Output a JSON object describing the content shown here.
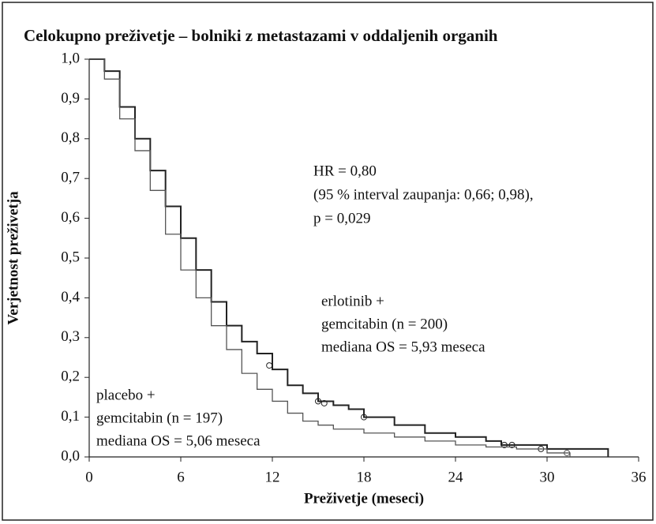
{
  "chart_data": {
    "type": "step",
    "title": "Celokupno preživetje – bolniki z metastazami v oddaljenih organih",
    "xlabel": "Preživetje (meseci)",
    "ylabel": "Verjetnost preživetja",
    "xlim": [
      0,
      36
    ],
    "xticks": [
      0,
      6,
      12,
      18,
      24,
      30,
      36
    ],
    "ylim": [
      0,
      1
    ],
    "yticks": [
      {
        "value": 0,
        "label": "0,0"
      },
      {
        "value": 0.1,
        "label": "0,1"
      },
      {
        "value": 0.2,
        "label": "0,2"
      },
      {
        "value": 0.3,
        "label": "0,3"
      },
      {
        "value": 0.4,
        "label": "0,4"
      },
      {
        "value": 0.5,
        "label": "0,5"
      },
      {
        "value": 0.6,
        "label": "0,6"
      },
      {
        "value": 0.7,
        "label": "0,7"
      },
      {
        "value": 0.8,
        "label": "0,8"
      },
      {
        "value": 0.9,
        "label": "0,9"
      },
      {
        "value": 1,
        "label": "1,0"
      }
    ],
    "series": [
      {
        "name": "erlotinib",
        "color": "#222222",
        "x": [
          0,
          1,
          2,
          3,
          4,
          5,
          6,
          7,
          8,
          9,
          10,
          11,
          12,
          13,
          14,
          15,
          16,
          17,
          18,
          20,
          22,
          24,
          26,
          27,
          30,
          34
        ],
        "values": [
          1.0,
          0.97,
          0.88,
          0.8,
          0.72,
          0.63,
          0.55,
          0.47,
          0.39,
          0.33,
          0.29,
          0.26,
          0.22,
          0.18,
          0.16,
          0.14,
          0.13,
          0.12,
          0.1,
          0.08,
          0.06,
          0.05,
          0.04,
          0.03,
          0.02,
          0.0
        ],
        "censored_x": [
          11.8,
          15,
          15.4,
          18,
          27.2,
          27.7,
          29.6
        ],
        "censored_values": [
          0.23,
          0.14,
          0.135,
          0.1,
          0.03,
          0.03,
          0.02
        ]
      },
      {
        "name": "placebo",
        "color": "#555555",
        "x": [
          0,
          1,
          2,
          3,
          4,
          5,
          6,
          7,
          8,
          9,
          10,
          11,
          12,
          13,
          14,
          15,
          16,
          18,
          20,
          22,
          24,
          26,
          28,
          30,
          31.5
        ],
        "values": [
          1.0,
          0.95,
          0.85,
          0.77,
          0.67,
          0.56,
          0.47,
          0.4,
          0.33,
          0.27,
          0.21,
          0.17,
          0.14,
          0.11,
          0.09,
          0.08,
          0.07,
          0.06,
          0.05,
          0.04,
          0.03,
          0.025,
          0.02,
          0.01,
          0.0
        ],
        "censored_x": [
          31.3
        ],
        "censored_values": [
          0.01
        ]
      }
    ],
    "annotations": [
      {
        "lines": [
          "HR = 0,80",
          "(95 % interval zaupanja: 0,66; 0,98),",
          "p = 0,029"
        ]
      },
      {
        "lines": [
          "erlotinib +",
          "gemcitabin (n = 200)",
          "mediana OS = 5,93 meseca"
        ]
      },
      {
        "lines": [
          "placebo +",
          "gemcitabin (n = 197)",
          "mediana OS = 5,06 meseca"
        ]
      }
    ]
  }
}
